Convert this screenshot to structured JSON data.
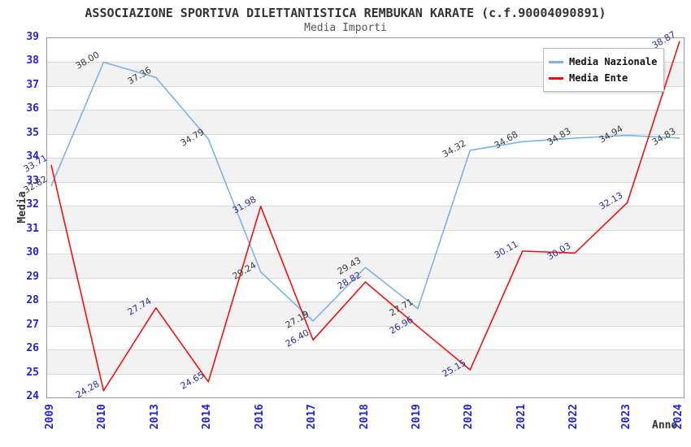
{
  "title": "ASSOCIAZIONE SPORTIVA DILETTANTISTICA REMBUKAN KARATE (c.f.90004090891)",
  "subtitle": "Media Importi",
  "y_axis_label": "Media",
  "x_axis_label": "Anno",
  "legend": {
    "position": "top-right",
    "items": [
      {
        "label": "Media Nazionale",
        "color": "#7eb1e6"
      },
      {
        "label": "Media Ente",
        "color": "#ee1111"
      }
    ]
  },
  "colors": {
    "axis_tick": "#2525ce",
    "grid_line": "#d9d9d9",
    "band_fill": "#f2f2f2",
    "plot_border": "#999999",
    "title_text": "#333333",
    "subtitle_text": "#555555"
  },
  "chart_data": {
    "type": "line",
    "title": "Media Importi",
    "xlabel": "Anno",
    "ylabel": "Media",
    "categories": [
      "2009",
      "2010",
      "2013",
      "2014",
      "2016",
      "2017",
      "2018",
      "2019",
      "2020",
      "2021",
      "2022",
      "2023",
      "2024"
    ],
    "series": [
      {
        "name": "Media Nazionale",
        "color": "#7eb1e6",
        "label_color": "#3a3a3a",
        "values": [
          32.82,
          38.0,
          37.36,
          34.79,
          29.24,
          27.19,
          29.43,
          27.71,
          34.32,
          34.68,
          34.83,
          34.94,
          34.83
        ]
      },
      {
        "name": "Media Ente",
        "color": "#ee1111",
        "label_color": "#2e2e99",
        "values": [
          33.71,
          24.28,
          27.74,
          24.65,
          31.98,
          26.4,
          28.82,
          26.96,
          25.15,
          30.11,
          30.03,
          32.13,
          38.87
        ]
      }
    ],
    "ylim": [
      24,
      39
    ],
    "y_tick_step": 1,
    "grid": "alternating-horizontal-bands",
    "value_label_format": "two-decimals-rotated",
    "legend_position": "top-right"
  }
}
